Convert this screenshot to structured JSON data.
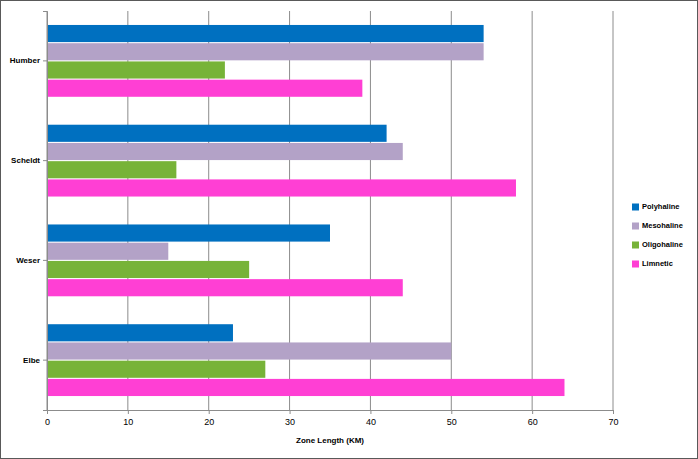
{
  "chart_data": {
    "type": "bar",
    "orientation": "horizontal",
    "categories": [
      "Humber",
      "Scheldt",
      "Weser",
      "Elbe"
    ],
    "series": [
      {
        "name": "Polyhaline",
        "color": "#0070c0",
        "values": [
          54,
          42,
          35,
          23
        ]
      },
      {
        "name": "Mesohaline",
        "color": "#b3a2c7",
        "values": [
          54,
          44,
          15,
          50
        ]
      },
      {
        "name": "Oligohaline",
        "color": "#77b338",
        "values": [
          22,
          16,
          25,
          27
        ]
      },
      {
        "name": "Limnetic",
        "color": "#ff3fd4",
        "values": [
          39,
          58,
          44,
          64
        ]
      }
    ],
    "xlabel": "Zone Length (KM)",
    "xlim": [
      0,
      70
    ],
    "xticks": [
      0,
      10,
      20,
      30,
      40,
      50,
      60,
      70
    ],
    "grid": true,
    "legend": "right"
  }
}
